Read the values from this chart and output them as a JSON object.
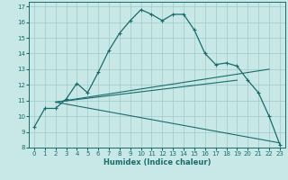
{
  "xlabel": "Humidex (Indice chaleur)",
  "bg_color": "#c8e8e8",
  "grid_color": "#a0c8c8",
  "line_color": "#1a6b6b",
  "xlim": [
    -0.5,
    23.5
  ],
  "ylim": [
    8,
    17.3
  ],
  "xticks": [
    0,
    1,
    2,
    3,
    4,
    5,
    6,
    7,
    8,
    9,
    10,
    11,
    12,
    13,
    14,
    15,
    16,
    17,
    18,
    19,
    20,
    21,
    22,
    23
  ],
  "yticks": [
    8,
    9,
    10,
    11,
    12,
    13,
    14,
    15,
    16,
    17
  ],
  "line1_x": [
    0,
    1,
    2,
    3,
    4,
    5,
    6,
    7,
    8,
    9,
    10,
    11,
    12,
    13,
    14,
    15,
    16,
    17,
    18,
    19,
    20,
    21,
    22,
    23
  ],
  "line1_y": [
    9.3,
    10.5,
    10.5,
    11.1,
    12.1,
    11.5,
    12.8,
    14.2,
    15.3,
    16.1,
    16.8,
    16.5,
    16.1,
    16.5,
    16.5,
    15.5,
    14.0,
    13.3,
    13.4,
    13.2,
    12.3,
    11.5,
    10.0,
    8.2
  ],
  "line2_x": [
    2,
    19
  ],
  "line2_y": [
    10.9,
    12.3
  ],
  "line3_x": [
    2,
    22
  ],
  "line3_y": [
    10.9,
    13.0
  ],
  "line4_x": [
    2,
    23
  ],
  "line4_y": [
    10.9,
    8.3
  ]
}
